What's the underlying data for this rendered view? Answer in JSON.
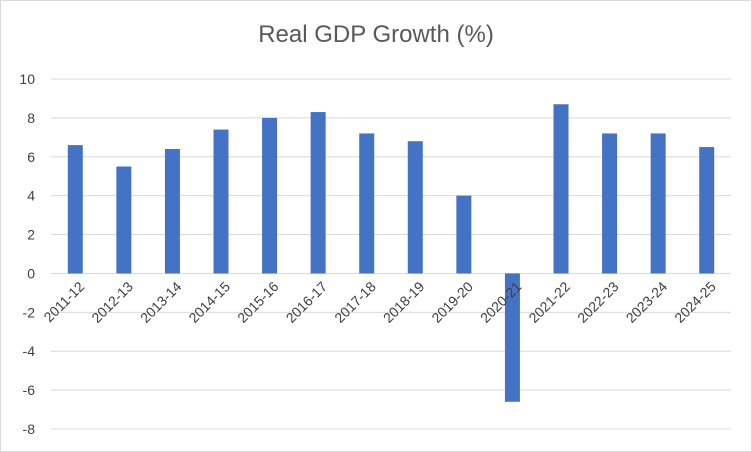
{
  "chart_data": {
    "type": "bar",
    "title": "Real GDP Growth (%)",
    "xlabel": "",
    "ylabel": "",
    "categories": [
      "2011-12",
      "2012-13",
      "2013-14",
      "2014-15",
      "2015-16",
      "2016-17",
      "2017-18",
      "2018-19",
      "2019-20",
      "2020-21",
      "2021-22",
      "2022-23",
      "2023-24",
      "2024-25"
    ],
    "values": [
      6.6,
      5.5,
      6.4,
      7.4,
      8.0,
      8.3,
      7.2,
      6.8,
      4.0,
      -6.6,
      8.7,
      7.2,
      7.2,
      6.5
    ],
    "ylim": [
      -8,
      10
    ],
    "yticks": [
      "10",
      "8",
      "6",
      "4",
      "2",
      "0",
      "-2",
      "-4",
      "-6",
      "-8"
    ],
    "grid": true,
    "legend": "none",
    "colors": {
      "bar": "#4472C4",
      "grid": "#d9d9d9",
      "text": "#404040",
      "title": "#595959"
    }
  }
}
